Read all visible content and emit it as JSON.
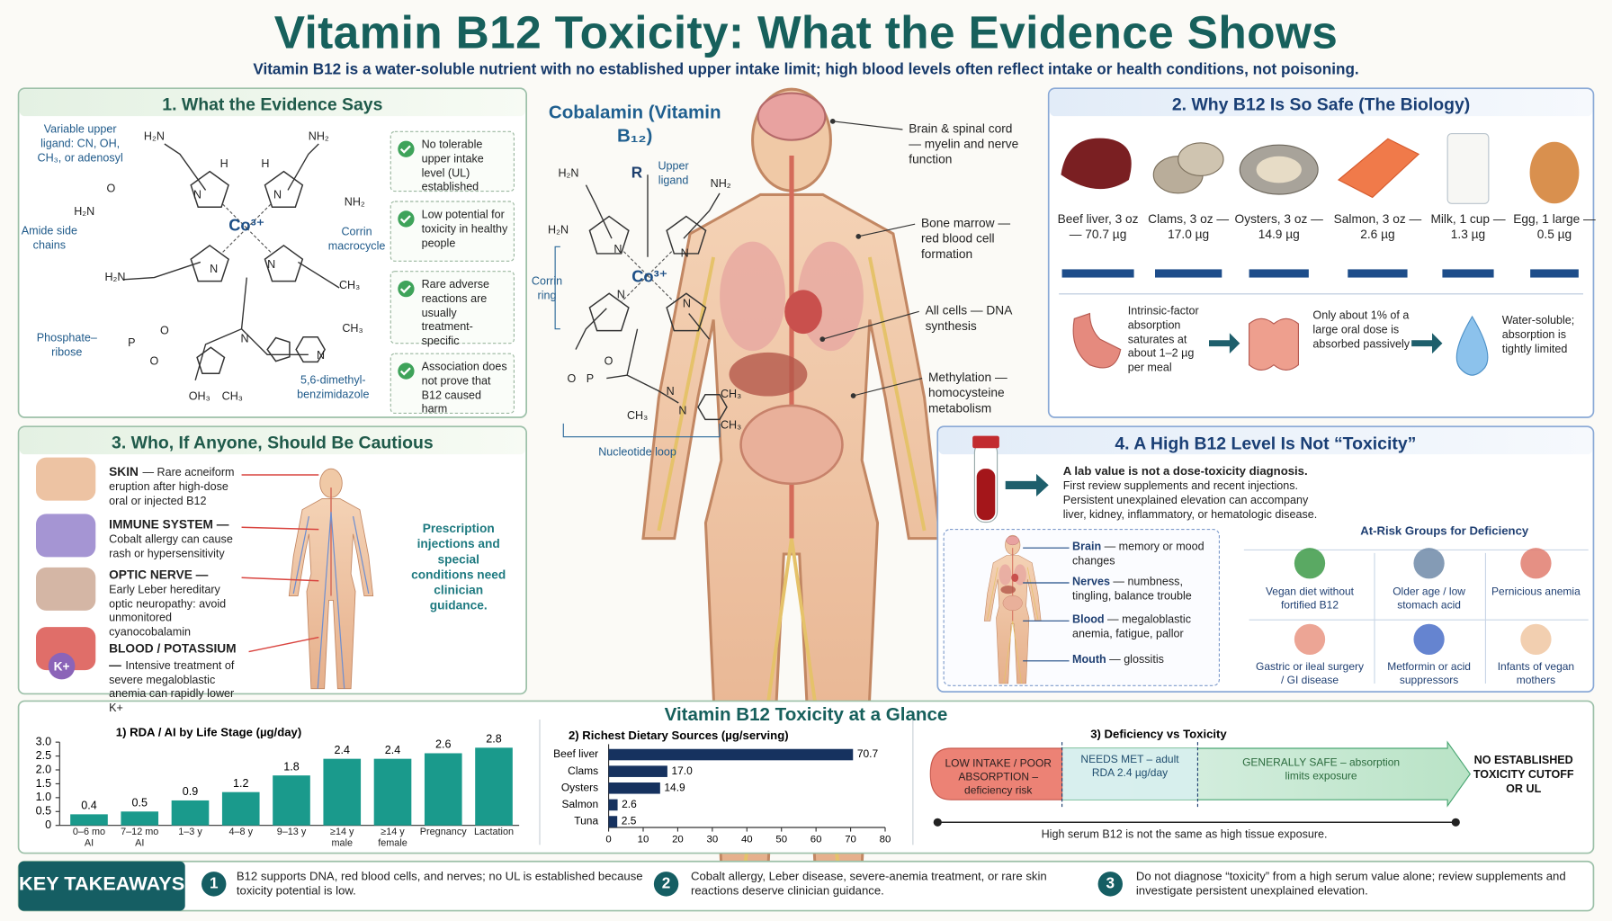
{
  "header": {
    "title": "Vitamin B12 Toxicity: What the Evidence Shows",
    "subtitle": "Vitamin B12 is a water-soluble nutrient with no established upper intake limit; high blood levels often reflect intake or health conditions, not poisoning."
  },
  "evidence": {
    "title": "1. What the Evidence Says",
    "labels": [
      "Variable upper ligand: CN, OH, CH₃, or adenosyl",
      "Amide side chains",
      "Corrin macrocycle",
      "Phosphate–ribose",
      "5,6-dimethyl-benzimidazole"
    ],
    "atoms": [
      "H₂N",
      "NH₂",
      "H₂N",
      "O",
      "NH₂",
      "H₂N",
      "CH₃",
      "Co³⁺",
      "N",
      "N",
      "N",
      "N",
      "H",
      "H",
      "O",
      "P",
      "O",
      "OH₃",
      "CH₃",
      "CH₃",
      "N",
      "N"
    ],
    "checks": [
      "No tolerable upper intake level (UL) established",
      "Low potential for toxicity in healthy people",
      "Rare adverse reactions are usually treatment-specific",
      "Association does not prove that B12 caused harm"
    ]
  },
  "structure": {
    "title": "Cobalamin (Vitamin B₁₂)",
    "labels": [
      "R",
      "Upper ligand",
      "Corrin ring",
      "Nucleotide loop"
    ],
    "atoms": [
      "H₂N",
      "NH₂",
      "H₂N",
      "Co³⁺",
      "N",
      "N",
      "N",
      "N",
      "O",
      "P",
      "O",
      "CH₃",
      "CH₃",
      "CH₃",
      "N",
      "N"
    ]
  },
  "body": {
    "labels": [
      "Brain & spinal cord — myelin and nerve function",
      "Bone marrow — red blood cell formation",
      "All cells — DNA synthesis",
      "Methylation — homocysteine metabolism"
    ]
  },
  "safety": {
    "title": "2. Why B12 Is So Safe (The Biology)",
    "foods": [
      "Beef liver, 3 oz — 70.7 µg",
      "Clams, 3 oz — 17.0 µg",
      "Oysters, 3 oz — 14.9 µg",
      "Salmon, 3 oz — 2.6 µg",
      "Milk, 1 cup — 1.3 µg",
      "Egg, 1 large — 0.5 µg"
    ],
    "steps": [
      "Intrinsic-factor absorption saturates at about 1–2 µg per meal",
      "Only about 1% of a large oral dose is absorbed passively",
      "Water-soluble; absorption is tightly limited"
    ]
  },
  "caution": {
    "title": "3. Who, If Anyone, Should Be Cautious",
    "items": [
      {
        "heading": "SKIN",
        "text": "— Rare acneiform eruption after high-dose oral or injected B12"
      },
      {
        "heading": "IMMUNE SYSTEM —",
        "text": "Cobalt allergy can cause rash or hypersensitivity"
      },
      {
        "heading": "OPTIC NERVE —",
        "text": "Early Leber hereditary optic neuropathy: avoid unmonitored cyanocobalamin"
      },
      {
        "heading": "BLOOD / POTASSIUM —",
        "text": "Intensive treatment of severe megaloblastic anemia can rapidly lower K+"
      }
    ],
    "potassium_icon": "K+",
    "note": "Prescription injections and special conditions need clinician guidance."
  },
  "alert": {
    "title": "4. A High B12 Level Is Not “Toxicity”",
    "lab_headline": "A lab value is not a dose-toxicity diagnosis.",
    "lab_text": "First review supplements and recent injections. Persistent unexplained elevation can accompany liver, kidney, inflammatory, or hematologic disease.",
    "signs": [
      {
        "term": "Brain",
        "text": "— memory or mood changes"
      },
      {
        "term": "Nerves",
        "text": "— numbness, tingling, balance trouble"
      },
      {
        "term": "Blood",
        "text": "— megaloblastic anemia, fatigue, pallor"
      },
      {
        "term": "Mouth",
        "text": "— glossitis"
      }
    ],
    "risk_title": "At-Risk Groups for Deficiency",
    "groups": [
      "Vegan diet without fortified B12",
      "Older age / low stomach acid",
      "Pernicious anemia",
      "Gastric or ileal surgery / GI disease",
      "Metformin or acid suppressors",
      "Infants of vegan mothers"
    ]
  },
  "glance": {
    "title": "Vitamin B12 Toxicity at a Glance"
  },
  "chart_data": [
    {
      "type": "bar",
      "title": "1) RDA / AI by Life Stage (µg/day)",
      "categories": [
        "0–6 mo AI",
        "7–12 mo AI",
        "1–3 y",
        "4–8 y",
        "9–13 y",
        "≥14 y male",
        "≥14 y female",
        "Pregnancy",
        "Lactation"
      ],
      "values": [
        0.4,
        0.5,
        0.9,
        1.2,
        1.8,
        2.4,
        2.4,
        2.6,
        2.8
      ],
      "color": "#1a9a8c",
      "ylim": [
        0,
        3
      ],
      "yticks": [
        0,
        0.5,
        {
          "value": 1,
          "label": "1.0"
        },
        1.5,
        {
          "value": 2,
          "label": "2.0"
        },
        2.5,
        {
          "value": 3,
          "label": "3.0"
        }
      ]
    },
    {
      "type": "bar",
      "orientation": "horizontal",
      "title": "2) Richest Dietary Sources (µg/serving)",
      "categories": [
        "Beef liver",
        "Clams",
        "Oysters",
        "Salmon",
        "Tuna"
      ],
      "values": [
        70.7,
        17,
        14.9,
        2.6,
        2.5
      ],
      "value_labels": [
        "70.7",
        "17.0",
        "14.9",
        "2.6",
        "2.5"
      ],
      "color": "#16325f",
      "xlim": [
        0,
        80
      ],
      "xticks": [
        0,
        10,
        20,
        30,
        40,
        50,
        60,
        70,
        80
      ]
    }
  ],
  "spectrum": {
    "title": "3) Deficiency vs Toxicity",
    "segments": [
      "LOW INTAKE / POOR ABSORPTION – deficiency risk",
      "NEEDS MET – adult RDA 2.4 µg/day",
      "GENERALLY SAFE – absorption limits exposure"
    ],
    "end_label": "NO ESTABLISHED TOXICITY CUTOFF OR UL",
    "caption": "High serum B12 is not the same as high tissue exposure."
  },
  "takeaways": {
    "label": "KEY TAKEAWAYS",
    "items": [
      {
        "number": 1,
        "text": "B12 supports DNA, red blood cells, and nerves; no UL is established because toxicity potential is low."
      },
      {
        "number": 2,
        "text": "Cobalt allergy, Leber disease, severe-anemia treatment, or rare skin reactions deserve clinician guidance."
      },
      {
        "number": 3,
        "text": "Do not diagnose “toxicity” from a high serum value alone; review supplements and investigate persistent unexplained elevation."
      }
    ]
  }
}
